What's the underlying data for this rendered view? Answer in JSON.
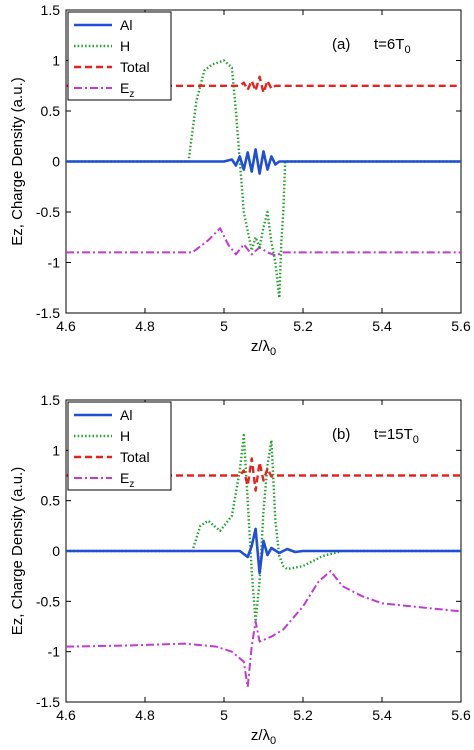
{
  "chart_data": [
    {
      "type": "line",
      "panel_label": "(a)",
      "time_label": "t=6T",
      "time_sub": "0",
      "xlabel": "z/λ",
      "xlabel_sub": "0",
      "ylabel": "Ez, Charge Density (a.u.)",
      "xlim": [
        4.6,
        5.6
      ],
      "ylim": [
        -1.5,
        1.5
      ],
      "xticks": [
        "4.6",
        "4.8",
        "5",
        "5.2",
        "5.4",
        "5.6"
      ],
      "yticks": [
        "1.5",
        "1",
        "0.5",
        "0",
        "-0.5",
        "-1",
        "-1.5"
      ],
      "legend_position": "top-left",
      "series": [
        {
          "name": "Al",
          "color": "#1f4fd6",
          "style": "solid",
          "x": [
            4.6,
            5.0,
            5.02,
            5.03,
            5.04,
            5.05,
            5.06,
            5.07,
            5.08,
            5.09,
            5.1,
            5.11,
            5.12,
            5.13,
            5.14,
            5.6
          ],
          "y": [
            0,
            0,
            0.02,
            -0.04,
            0.05,
            -0.08,
            0.09,
            -0.1,
            0.12,
            -0.12,
            0.1,
            -0.08,
            0.05,
            -0.03,
            0,
            0
          ]
        },
        {
          "name": "H",
          "color": "#1fa32a",
          "style": "dotted",
          "x": [
            4.6,
            4.91,
            4.93,
            4.95,
            4.97,
            5.0,
            5.02,
            5.03,
            5.05,
            5.07,
            5.08,
            5.09,
            5.1,
            5.11,
            5.12,
            5.13,
            5.14,
            5.145,
            5.15,
            5.155,
            5.6
          ],
          "y": [
            0,
            0,
            0.6,
            0.9,
            0.96,
            1.0,
            0.93,
            0.5,
            -0.5,
            -0.88,
            -0.75,
            -0.85,
            -0.65,
            -0.5,
            -0.8,
            -1.0,
            -1.35,
            -0.8,
            -0.5,
            0,
            0
          ]
        },
        {
          "name": "Total",
          "color": "#e8231f",
          "style": "dashed",
          "x": [
            4.6,
            5.04,
            5.05,
            5.06,
            5.07,
            5.08,
            5.09,
            5.1,
            5.11,
            5.12,
            5.13,
            5.6
          ],
          "y": [
            0.75,
            0.75,
            0.78,
            0.71,
            0.8,
            0.7,
            0.84,
            0.68,
            0.8,
            0.72,
            0.75,
            0.75
          ]
        },
        {
          "name": "Ez",
          "color": "#c23ad2",
          "style": "dashdot",
          "x": [
            4.6,
            4.92,
            4.96,
            4.99,
            5.01,
            5.03,
            5.05,
            5.07,
            5.09,
            5.11,
            5.13,
            5.15,
            5.6
          ],
          "y": [
            -0.9,
            -0.9,
            -0.78,
            -0.66,
            -0.82,
            -0.92,
            -0.82,
            -0.92,
            -0.85,
            -0.9,
            -0.93,
            -0.9,
            -0.9
          ]
        }
      ]
    },
    {
      "type": "line",
      "panel_label": "(b)",
      "time_label": "t=15T",
      "time_sub": "0",
      "xlabel": "z/λ",
      "xlabel_sub": "0",
      "ylabel": "Ez, Charge Density (a.u.)",
      "xlim": [
        4.6,
        5.6
      ],
      "ylim": [
        -1.5,
        1.5
      ],
      "xticks": [
        "4.6",
        "4.8",
        "5",
        "5.2",
        "5.4",
        "5.6"
      ],
      "yticks": [
        "1.5",
        "1",
        "0.5",
        "0",
        "-0.5",
        "-1",
        "-1.5"
      ],
      "legend_position": "top-left",
      "series": [
        {
          "name": "Al",
          "color": "#1f4fd6",
          "style": "solid",
          "x": [
            4.6,
            5.04,
            5.05,
            5.06,
            5.07,
            5.08,
            5.09,
            5.1,
            5.11,
            5.12,
            5.14,
            5.16,
            5.18,
            5.2,
            5.6
          ],
          "y": [
            0,
            0,
            -0.03,
            -0.06,
            0.05,
            0.22,
            -0.22,
            0.1,
            -0.04,
            0.03,
            -0.02,
            0.02,
            -0.01,
            0,
            0
          ]
        },
        {
          "name": "H",
          "color": "#1fa32a",
          "style": "dotted",
          "x": [
            4.6,
            4.92,
            4.94,
            4.96,
            4.99,
            5.02,
            5.04,
            5.05,
            5.06,
            5.07,
            5.08,
            5.09,
            5.1,
            5.11,
            5.12,
            5.13,
            5.14,
            5.15,
            5.16,
            5.2,
            5.25,
            5.3,
            5.6
          ],
          "y": [
            0,
            0,
            0.25,
            0.3,
            0.2,
            0.35,
            0.8,
            1.15,
            0.5,
            -0.2,
            -0.7,
            -0.3,
            0.4,
            0.85,
            1.1,
            0.3,
            -0.05,
            -0.15,
            -0.18,
            -0.15,
            -0.05,
            0,
            0
          ]
        },
        {
          "name": "Total",
          "color": "#e8231f",
          "style": "dashed",
          "x": [
            4.6,
            5.04,
            5.05,
            5.06,
            5.07,
            5.08,
            5.09,
            5.1,
            5.11,
            5.12,
            5.13,
            5.6
          ],
          "y": [
            0.75,
            0.75,
            0.8,
            0.65,
            0.92,
            0.6,
            0.88,
            0.7,
            0.82,
            0.74,
            0.75,
            0.75
          ]
        },
        {
          "name": "Ez",
          "color": "#c23ad2",
          "style": "dashdot",
          "x": [
            4.6,
            4.75,
            4.9,
            4.98,
            5.02,
            5.05,
            5.06,
            5.07,
            5.08,
            5.09,
            5.12,
            5.15,
            5.2,
            5.24,
            5.27,
            5.3,
            5.35,
            5.4,
            5.5,
            5.6
          ],
          "y": [
            -0.95,
            -0.94,
            -0.92,
            -0.95,
            -1.0,
            -1.1,
            -1.35,
            -0.95,
            -0.7,
            -0.9,
            -0.85,
            -0.78,
            -0.55,
            -0.3,
            -0.2,
            -0.35,
            -0.45,
            -0.52,
            -0.56,
            -0.6
          ]
        }
      ]
    }
  ]
}
